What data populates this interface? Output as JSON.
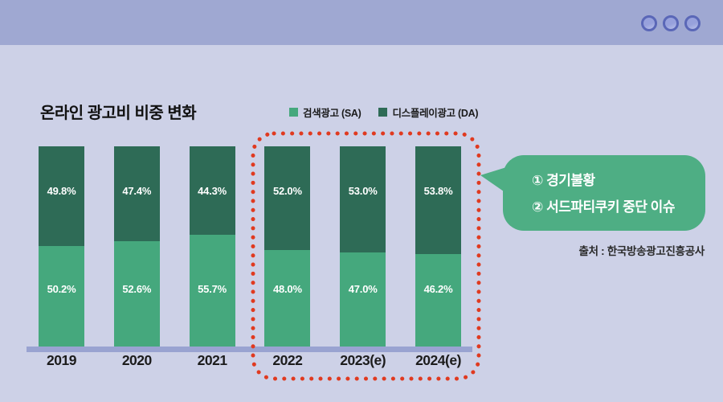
{
  "window": {
    "controls": [
      "window-button",
      "window-button",
      "window-button"
    ]
  },
  "chart_data": {
    "type": "bar",
    "stacked": true,
    "title": "온라인 광고비 비중 변화",
    "unit": "%",
    "categories": [
      "2019",
      "2020",
      "2021",
      "2022",
      "2023(e)",
      "2024(e)"
    ],
    "series": [
      {
        "name": "검색광고 (SA)",
        "color": "#45A87D",
        "values": [
          50.2,
          52.6,
          55.7,
          48.0,
          47.0,
          46.2
        ]
      },
      {
        "name": "디스플레이광고 (DA)",
        "color": "#2E6B56",
        "values": [
          49.8,
          47.4,
          44.3,
          52.0,
          53.0,
          53.8
        ]
      }
    ],
    "ylim": [
      0,
      100
    ],
    "legend_position": "top",
    "grid": false,
    "highlight": {
      "categories": [
        "2022",
        "2023(e)",
        "2024(e)"
      ],
      "style": "red-dotted-rounded-box"
    }
  },
  "callout": {
    "items": [
      "① 경기불황",
      "② 서드파티쿠키 중단 이슈"
    ]
  },
  "source": "출처 : 한국방송광고진흥공사",
  "colors": {
    "topbar": "#9FA8D2",
    "background": "#CDD1E7",
    "sa_green": "#45A87D",
    "da_green": "#2E6B56",
    "bubble_green": "#4EAE84",
    "axis_line": "#99A3D1",
    "highlight_red": "#E03A20",
    "title_text": "#111111",
    "bar_label_text": "#FFFFFF",
    "source_text": "#2B2B2B",
    "window_button_ring": "#5A67B7",
    "window_button_fill": "#97A1DC"
  }
}
